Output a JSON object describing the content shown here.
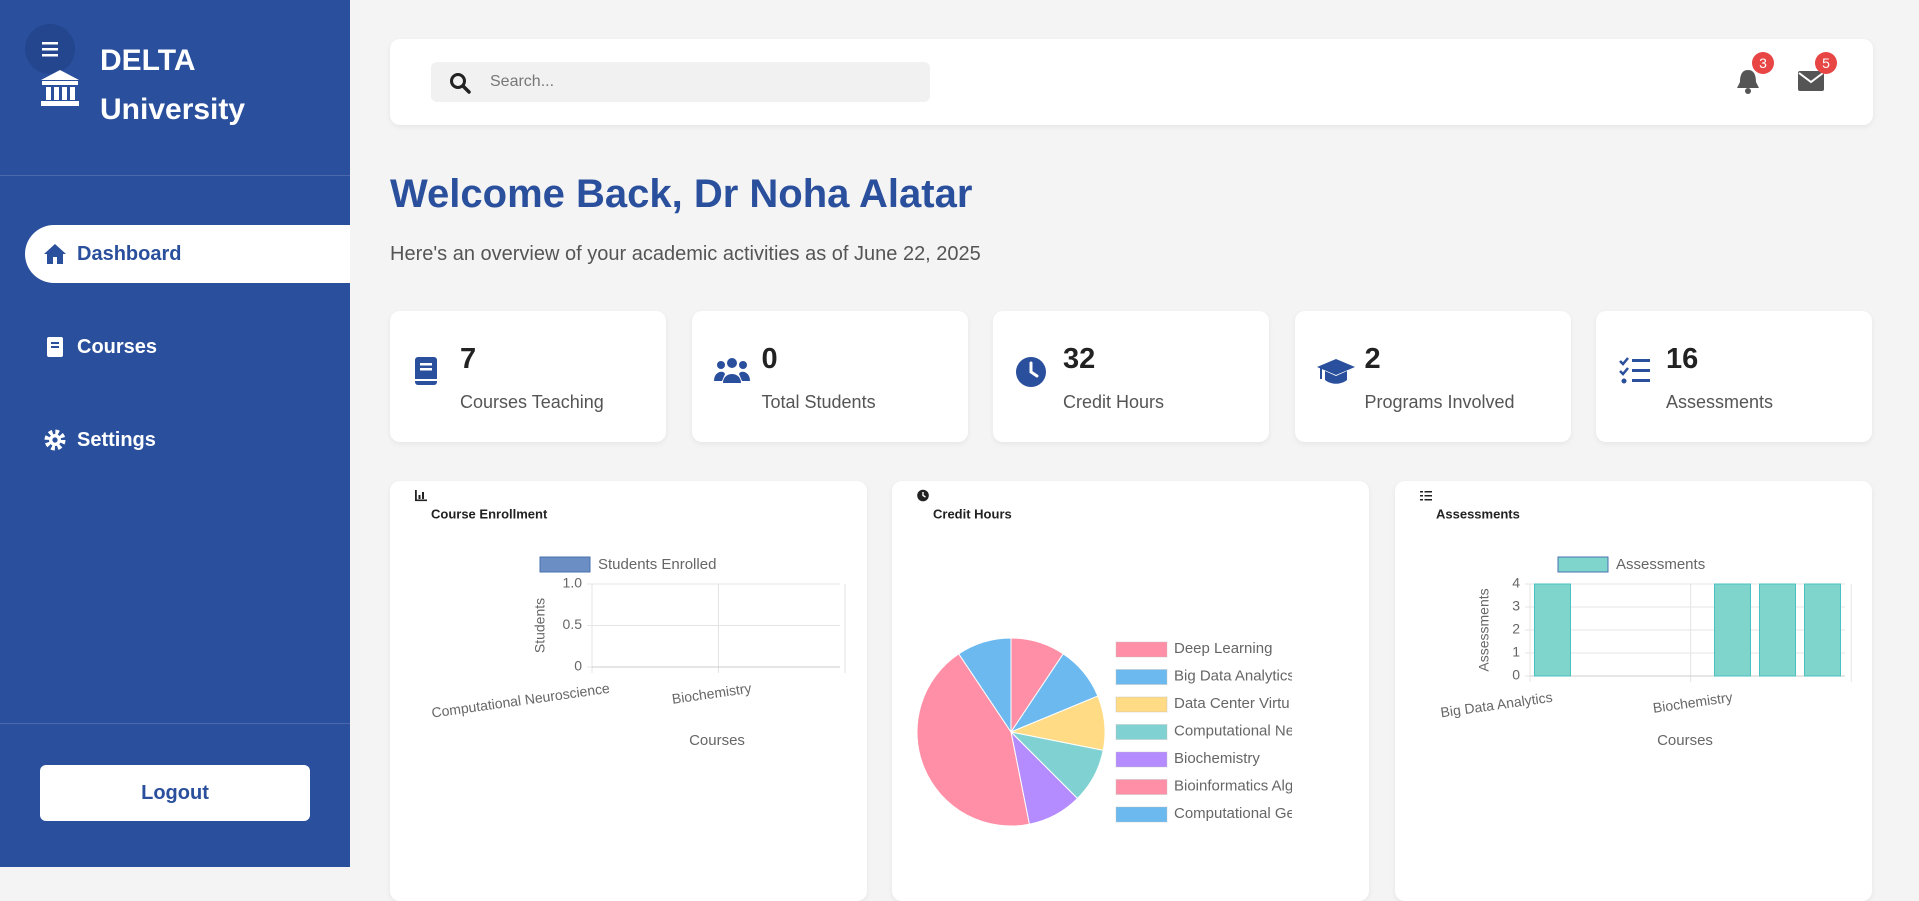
{
  "sidebar": {
    "brand": [
      "DELTA",
      "University"
    ],
    "nav": [
      "Dashboard",
      "Courses",
      "Settings"
    ],
    "logout": "Logout"
  },
  "header": {
    "search_placeholder": "Search...",
    "notifications": 3,
    "messages": 5
  },
  "welcome": {
    "title": "Welcome Back, Dr Noha Alatar",
    "subtitle": "Here's an overview of your academic activities as of June 22, 2025"
  },
  "stats": [
    {
      "value": 7,
      "label": "Courses Teaching"
    },
    {
      "value": 0,
      "label": "Total Students"
    },
    {
      "value": 32,
      "label": "Credit Hours"
    },
    {
      "value": 2,
      "label": "Programs Involved"
    },
    {
      "value": 16,
      "label": "Assessments"
    }
  ],
  "chart_data": [
    {
      "type": "bar",
      "title": "Course Enrollment",
      "categories": [
        "Computational Neuroscience",
        null,
        null,
        null,
        "Biochemistry",
        null,
        null
      ],
      "series": [
        {
          "name": "Students Enrolled",
          "color": "#6b8fc4",
          "values": [
            0,
            0,
            0,
            0,
            0,
            0,
            0
          ]
        }
      ],
      "ylim": [
        0,
        1
      ],
      "yticks": [
        0,
        0.5,
        {
          "value": 1,
          "label": "1.0"
        }
      ],
      "y_label": "Students",
      "x_label": "Courses",
      "grid": true
    },
    {
      "type": "pie",
      "title": "Credit Hours",
      "categories": [
        "Deep Learning",
        "Big Data Analytics",
        "Data Center Virtu",
        "Computational Ne",
        "Biochemistry",
        "Bioinformatics Alg",
        "Computational Ge"
      ],
      "values": [
        3,
        3,
        3,
        3,
        3,
        14,
        3
      ],
      "colors": [
        "#ff8fa6",
        "#6cb9f0",
        "#ffdb85",
        "#80d2d2",
        "#b48cff",
        "#ff8fa6",
        "#6cb9f0"
      ]
    },
    {
      "type": "bar",
      "title": "Assessments",
      "categories": [
        "Big Data Analytics",
        null,
        null,
        null,
        "Biochemistry",
        null,
        null
      ],
      "series": [
        {
          "name": "Assessments",
          "color": "#7fd4cc",
          "values": [
            4,
            0,
            0,
            0,
            4,
            4,
            4
          ]
        }
      ],
      "ylim": [
        0,
        4
      ],
      "yticks": [
        0,
        1,
        2,
        3,
        4
      ],
      "y_label": "Assessments",
      "x_label": "Courses",
      "grid": true
    }
  ]
}
